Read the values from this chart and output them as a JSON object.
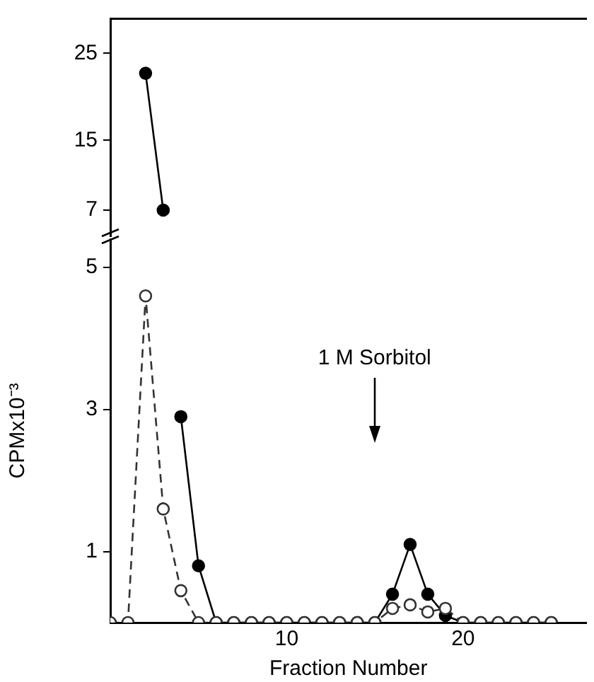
{
  "chart_data": [
    {
      "type": "line",
      "x": [
        2,
        3
      ],
      "xlim": [
        0,
        27
      ],
      "ylim": [
        4,
        29
      ],
      "yticks": [
        7,
        15,
        25
      ],
      "tick_labels": "y",
      "grid": false,
      "legend": false,
      "marker": "circle",
      "series": [
        {
          "color": "#000000",
          "line_style": "solid",
          "values": [
            22.7,
            7
          ]
        }
      ]
    },
    {
      "type": "line",
      "x": [
        0,
        1,
        2,
        3,
        4,
        5,
        6,
        7,
        8,
        9,
        10,
        11,
        12,
        13,
        14,
        15,
        16,
        17,
        18,
        19,
        20,
        21,
        22,
        23,
        24,
        25
      ],
      "xlim": [
        0,
        27
      ],
      "xticks": [
        10,
        20
      ],
      "ylim": [
        0,
        5.4
      ],
      "yticks": [
        1,
        3,
        5
      ],
      "xlabel": "Fraction Number",
      "ylabel": "CPMx10⁻³",
      "grid": false,
      "legend": false,
      "marker": "circle",
      "annotations": [
        "1 M Sorbitol"
      ],
      "series": [
        {
          "color": "#000000",
          "line_style": "solid",
          "values": [
            null,
            null,
            null,
            null,
            2.9,
            0.8,
            0,
            0,
            0,
            0,
            0,
            0,
            0,
            0,
            0,
            0,
            0.4,
            1.1,
            0.4,
            0.1,
            0,
            0,
            0,
            0,
            0,
            0
          ]
        },
        {
          "color": "#333333",
          "line_style": "dashed",
          "values": [
            0,
            0,
            4.6,
            1.6,
            0.45,
            0,
            0,
            0,
            0,
            0,
            0,
            0,
            0,
            0,
            0,
            0,
            0.2,
            0.25,
            0.15,
            0.2,
            0,
            0,
            0,
            0,
            0,
            0
          ]
        }
      ]
    }
  ]
}
